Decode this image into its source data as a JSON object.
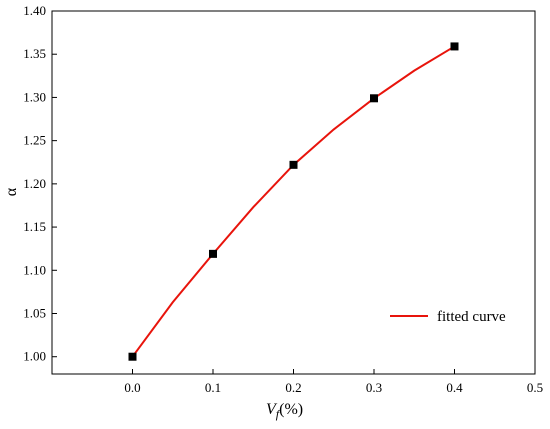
{
  "chart_data": {
    "type": "scatter",
    "x_ticks": [
      "0.0",
      "0.1",
      "0.2",
      "0.3",
      "0.4",
      "0.5"
    ],
    "y_ticks": [
      "1.00",
      "1.05",
      "1.10",
      "1.15",
      "1.20",
      "1.25",
      "1.30",
      "1.35",
      "1.40"
    ],
    "xlim": [
      -0.1,
      0.5
    ],
    "ylim": [
      0.98,
      1.4
    ],
    "xlabel_main": "V",
    "xlabel_sub": "f",
    "xlabel_unit": "(%)",
    "ylabel": "α",
    "grid": false,
    "legend_position": "bottom-right",
    "series": [
      {
        "kind": "markers",
        "marker": "square",
        "color": "#000000",
        "x": [
          0.0,
          0.1,
          0.2,
          0.3,
          0.4
        ],
        "y": [
          1.0,
          1.119,
          1.222,
          1.299,
          1.359
        ]
      },
      {
        "kind": "line",
        "name": "fitted curve",
        "color": "#e8140c",
        "x": [
          0.0,
          0.05,
          0.1,
          0.15,
          0.2,
          0.25,
          0.3,
          0.35,
          0.4
        ],
        "y": [
          1.0,
          1.063,
          1.119,
          1.173,
          1.222,
          1.263,
          1.299,
          1.331,
          1.359
        ]
      }
    ]
  }
}
